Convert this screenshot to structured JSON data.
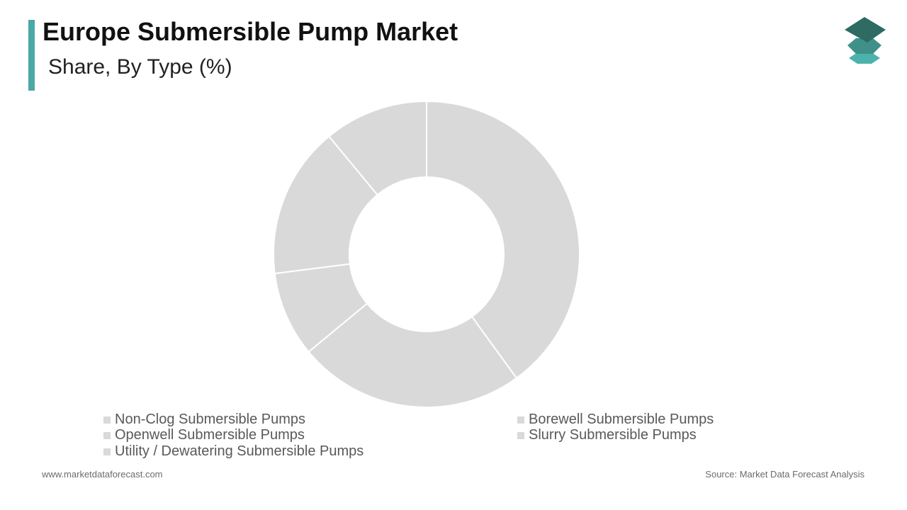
{
  "header": {
    "title": "Europe Submersible Pump Market",
    "subtitle": "Share, By Type  (%)"
  },
  "colors": {
    "accent": "#4aa8a5",
    "slice": "#d9d9d9",
    "logo_dark": "#2e6b63",
    "logo_mid": "#3f9088",
    "logo_light": "#4bb3ac"
  },
  "icons": {
    "logo": "stacked-layers-icon"
  },
  "chart_data": {
    "type": "pie",
    "donut": true,
    "title": "Europe Submersible Pump Market",
    "subtitle": "Share, By Type  (%)",
    "categories": [
      "Non-Clog Submersible Pumps",
      "Borewell Submersible Pumps",
      "Openwell Submersible Pumps",
      "Slurry Submersible Pumps",
      "Utility / Dewatering Submersible Pumps"
    ],
    "values": [
      40,
      24,
      9,
      16,
      11
    ],
    "legend_position": "bottom"
  },
  "footer": {
    "website": "www.marketdataforecast.com",
    "source": "Source: Market Data Forecast Analysis"
  }
}
